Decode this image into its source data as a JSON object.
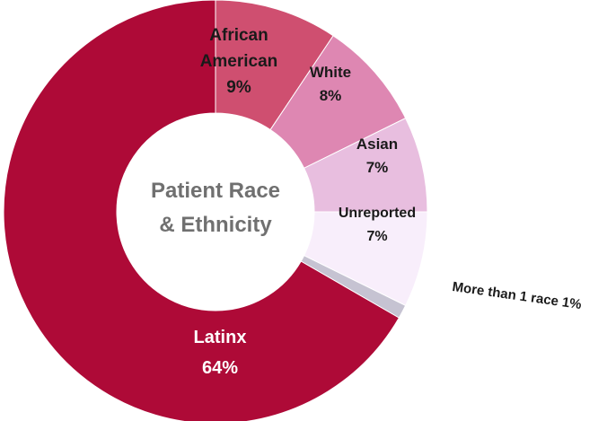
{
  "chart_data": {
    "type": "donut",
    "center_title": [
      "Patient Race",
      "& Ethnicity"
    ],
    "series": [
      {
        "slices": [
          {
            "name": "Latinx",
            "value": 64,
            "value_label": "64%",
            "color": "#AE0A37",
            "label_color": "#FFFFFF",
            "name_lines": [
              "Latinx"
            ]
          },
          {
            "name": "African American",
            "value": 9,
            "value_label": "9%",
            "color": "#CF4F70",
            "label_color": "#1A1A1A",
            "name_lines": [
              "African",
              "American"
            ]
          },
          {
            "name": "White",
            "value": 8,
            "value_label": "8%",
            "color": "#DE87B2",
            "label_color": "#1A1A1A",
            "name_lines": [
              "White"
            ]
          },
          {
            "name": "Asian",
            "value": 7,
            "value_label": "7%",
            "color": "#E8BEDF",
            "label_color": "#1A1A1A",
            "name_lines": [
              "Asian"
            ]
          },
          {
            "name": "Unreported",
            "value": 7,
            "value_label": "7%",
            "color": "#F8EEFB",
            "label_color": "#1A1A1A",
            "name_lines": [
              "Unreported"
            ]
          },
          {
            "name": "More than 1 race",
            "value": 1,
            "value_label": "1%",
            "color": "#C6C3D2",
            "label_color": "#1A1A1A",
            "name_lines": [
              "More than 1 race 1%"
            ]
          }
        ]
      }
    ],
    "center_title_color": "#707070"
  }
}
